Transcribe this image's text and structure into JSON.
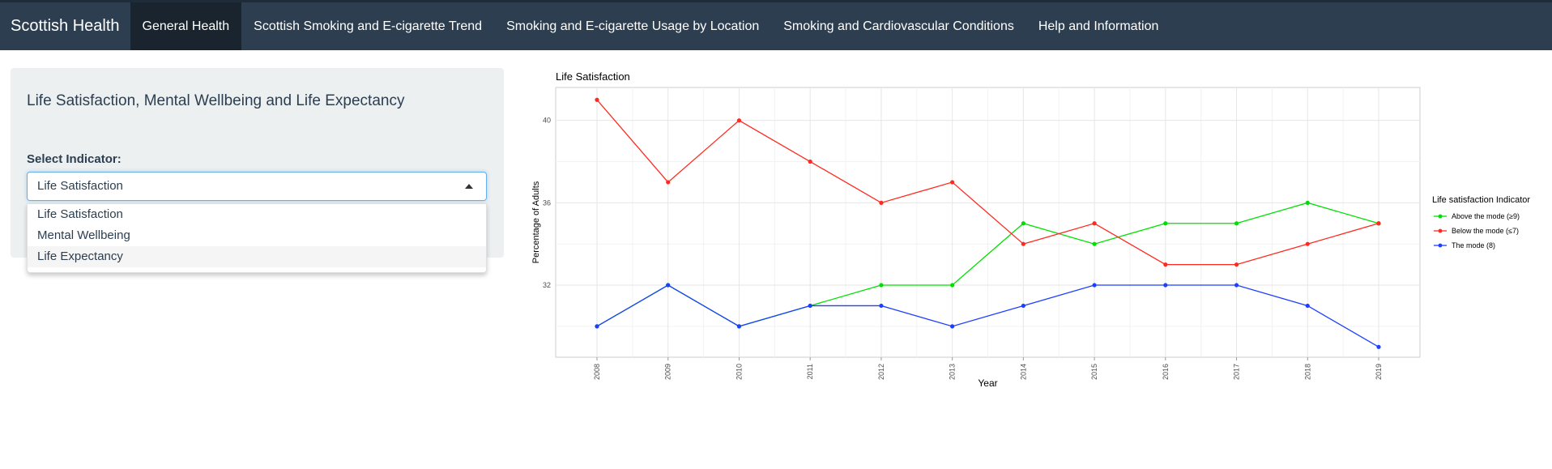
{
  "navbar": {
    "brand": "Scottish Health",
    "items": [
      {
        "label": "General Health",
        "active": true
      },
      {
        "label": "Scottish Smoking and E-cigarette Trend",
        "active": false
      },
      {
        "label": "Smoking and E-cigarette Usage by Location",
        "active": false
      },
      {
        "label": "Smoking and Cardiovascular Conditions",
        "active": false
      },
      {
        "label": "Help and Information",
        "active": false
      }
    ]
  },
  "sidebar": {
    "title": "Life Satisfaction, Mental Wellbeing and Life Expectancy",
    "select_label": "Select Indicator:",
    "selected": "Life Satisfaction",
    "options": [
      "Life Satisfaction",
      "Mental Wellbeing",
      "Life Expectancy"
    ]
  },
  "colors": {
    "navbar_bg": "#2c3e50",
    "active_tab": "#1a242f",
    "sidebar_bg": "#ecf0f1",
    "series_above": "#00e000",
    "series_below": "#ff2a1f",
    "series_mode": "#1f3fff"
  },
  "icons": {
    "select_caret": "caret-up-icon"
  },
  "chart_data": {
    "type": "line",
    "title": "Life Satisfaction",
    "xlabel": "Year",
    "ylabel": "Percentage of Adults",
    "x": [
      2008,
      2009,
      2010,
      2011,
      2012,
      2013,
      2014,
      2015,
      2016,
      2017,
      2018,
      2019
    ],
    "x_ticks": [
      "2008",
      "2009",
      "2010",
      "2011",
      "2012",
      "2013",
      "2014",
      "2015",
      "2016",
      "2017",
      "2018",
      "2019"
    ],
    "y_ticks": [
      32,
      36,
      40
    ],
    "ylim": [
      28.5,
      41.6
    ],
    "grid": true,
    "legend_title": "Life satisfaction Indicator",
    "legend_position": "right",
    "series": [
      {
        "name": "Above the mode (≥9)",
        "color": "#00e000",
        "values": [
          30,
          32,
          30,
          31,
          32,
          32,
          35,
          34,
          35,
          35,
          36,
          35
        ]
      },
      {
        "name": "Below the mode (≤7)",
        "color": "#ff2a1f",
        "values": [
          41,
          37,
          40,
          38,
          36,
          37,
          34,
          35,
          33,
          33,
          34,
          35
        ]
      },
      {
        "name": "The mode (8)",
        "color": "#1f3fff",
        "values": [
          30,
          32,
          30,
          31,
          31,
          30,
          31,
          32,
          32,
          32,
          31,
          29
        ]
      }
    ]
  }
}
